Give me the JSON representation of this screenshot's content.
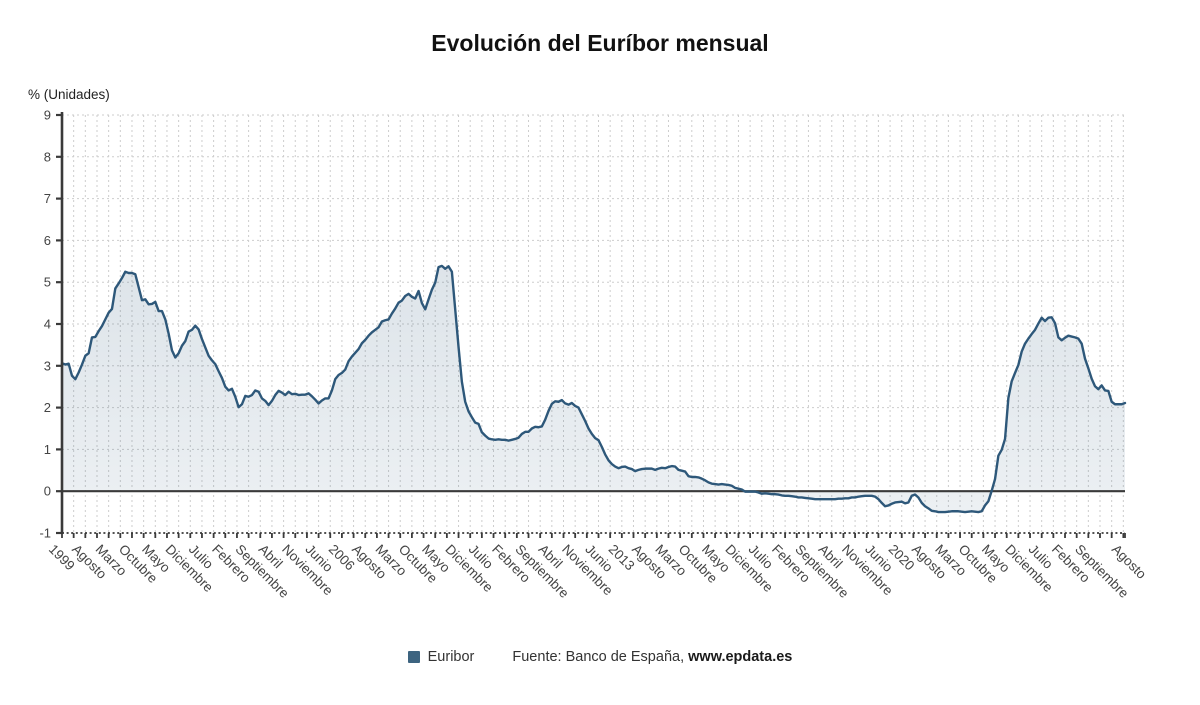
{
  "header": {
    "title": "Evolución del Euríbor mensual"
  },
  "axes": {
    "unit_label": "% (Unidades)"
  },
  "legend": {
    "series_label": "Euribor",
    "source_prefix": "Fuente: Banco de España, ",
    "source_site": "www.epdata.es"
  },
  "colors": {
    "line": "#2e587a",
    "area_top": "rgba(46,88,122,0.16)",
    "area_bottom": "rgba(46,88,122,0.09)",
    "legend_square": "#3d6480",
    "grid": "#cdcdcd",
    "axis": "#3a3a3a",
    "tick_text": "#444444"
  },
  "chart_data": {
    "type": "area",
    "title": "Evolución del Euríbor mensual",
    "ylabel": "% (Unidades)",
    "ylim": [
      -1,
      9
    ],
    "y_ticks": [
      9,
      8,
      7,
      6,
      5,
      4,
      3,
      2,
      1,
      0,
      -1
    ],
    "x_start": "1999-01",
    "x_end": "2025-08",
    "frequency": "monthly",
    "grid": "dashed",
    "legend_position": "bottom",
    "x_tick_indices": [
      0,
      7,
      14,
      21,
      28,
      35,
      42,
      49,
      56,
      63,
      70,
      77,
      84,
      91,
      98,
      105,
      112,
      119,
      126,
      133,
      140,
      147,
      154,
      161,
      168,
      175,
      182,
      189,
      196,
      203,
      210,
      217,
      224,
      231,
      238,
      245,
      252,
      259,
      266,
      273,
      280,
      287,
      294,
      301,
      308,
      319
    ],
    "x_tick_labels": [
      "1999",
      "Agosto",
      "Marzo",
      "Octubre",
      "Mayo",
      "Diciembre",
      "Julio",
      "Febrero",
      "Septiembre",
      "Abril",
      "Noviembre",
      "Junio",
      "2006",
      "Agosto",
      "Marzo",
      "Octubre",
      "Mayo",
      "Diciembre",
      "Julio",
      "Febrero",
      "Septiembre",
      "Abril",
      "Noviembre",
      "Junio",
      "2013",
      "Agosto",
      "Marzo",
      "Octubre",
      "Mayo",
      "Diciembre",
      "Julio",
      "Febrero",
      "Septiembre",
      "Abril",
      "Noviembre",
      "Junio",
      "2020",
      "Agosto",
      "Marzo",
      "Octubre",
      "Mayo",
      "Diciembre",
      "Julio",
      "Febrero",
      "Septiembre",
      "Agosto"
    ],
    "series": [
      {
        "name": "Euribor",
        "values": [
          3.06,
          3.03,
          3.05,
          2.76,
          2.68,
          2.84,
          3.03,
          3.24,
          3.3,
          3.68,
          3.69,
          3.83,
          3.95,
          4.11,
          4.27,
          4.36,
          4.85,
          4.97,
          5.1,
          5.25,
          5.22,
          5.22,
          5.19,
          4.88,
          4.57,
          4.59,
          4.47,
          4.48,
          4.53,
          4.31,
          4.31,
          4.11,
          3.77,
          3.37,
          3.2,
          3.3,
          3.48,
          3.59,
          3.82,
          3.86,
          3.96,
          3.87,
          3.64,
          3.44,
          3.24,
          3.13,
          3.04,
          2.87,
          2.71,
          2.5,
          2.41,
          2.45,
          2.26,
          2.01,
          2.08,
          2.28,
          2.26,
          2.3,
          2.41,
          2.38,
          2.22,
          2.16,
          2.06,
          2.16,
          2.3,
          2.4,
          2.36,
          2.3,
          2.38,
          2.32,
          2.33,
          2.3,
          2.31,
          2.31,
          2.34,
          2.27,
          2.19,
          2.1,
          2.17,
          2.22,
          2.22,
          2.41,
          2.68,
          2.78,
          2.83,
          2.91,
          3.11,
          3.22,
          3.31,
          3.4,
          3.54,
          3.62,
          3.72,
          3.8,
          3.86,
          3.92,
          4.06,
          4.09,
          4.11,
          4.25,
          4.37,
          4.51,
          4.56,
          4.67,
          4.72,
          4.65,
          4.61,
          4.79,
          4.5,
          4.35,
          4.59,
          4.82,
          4.99,
          5.36,
          5.39,
          5.32,
          5.38,
          5.25,
          4.35,
          3.45,
          2.62,
          2.14,
          1.91,
          1.77,
          1.64,
          1.61,
          1.41,
          1.33,
          1.26,
          1.24,
          1.23,
          1.24,
          1.23,
          1.23,
          1.21,
          1.23,
          1.25,
          1.28,
          1.37,
          1.42,
          1.42,
          1.5,
          1.54,
          1.53,
          1.55,
          1.71,
          1.92,
          2.09,
          2.15,
          2.14,
          2.18,
          2.1,
          2.07,
          2.11,
          2.04,
          2.0,
          1.84,
          1.68,
          1.5,
          1.37,
          1.27,
          1.22,
          1.06,
          0.88,
          0.74,
          0.65,
          0.59,
          0.55,
          0.58,
          0.59,
          0.55,
          0.53,
          0.48,
          0.51,
          0.53,
          0.54,
          0.54,
          0.54,
          0.51,
          0.54,
          0.56,
          0.55,
          0.58,
          0.6,
          0.59,
          0.51,
          0.49,
          0.47,
          0.36,
          0.34,
          0.34,
          0.33,
          0.3,
          0.26,
          0.21,
          0.18,
          0.17,
          0.16,
          0.17,
          0.16,
          0.15,
          0.13,
          0.08,
          0.06,
          0.04,
          -0.01,
          -0.01,
          -0.01,
          -0.01,
          -0.03,
          -0.06,
          -0.05,
          -0.06,
          -0.07,
          -0.07,
          -0.08,
          -0.1,
          -0.11,
          -0.11,
          -0.12,
          -0.13,
          -0.15,
          -0.15,
          -0.16,
          -0.17,
          -0.18,
          -0.19,
          -0.19,
          -0.19,
          -0.19,
          -0.19,
          -0.19,
          -0.19,
          -0.18,
          -0.18,
          -0.17,
          -0.17,
          -0.15,
          -0.15,
          -0.13,
          -0.12,
          -0.11,
          -0.11,
          -0.11,
          -0.13,
          -0.19,
          -0.28,
          -0.36,
          -0.34,
          -0.3,
          -0.27,
          -0.26,
          -0.25,
          -0.29,
          -0.27,
          -0.11,
          -0.08,
          -0.15,
          -0.28,
          -0.36,
          -0.41,
          -0.47,
          -0.48,
          -0.5,
          -0.5,
          -0.5,
          -0.49,
          -0.48,
          -0.48,
          -0.48,
          -0.49,
          -0.5,
          -0.49,
          -0.48,
          -0.49,
          -0.5,
          -0.48,
          -0.34,
          -0.24,
          0.01,
          0.29,
          0.85,
          0.99,
          1.25,
          2.23,
          2.63,
          2.83,
          3.02,
          3.34,
          3.53,
          3.65,
          3.76,
          3.86,
          4.01,
          4.15,
          4.07,
          4.15,
          4.16,
          4.02,
          3.68,
          3.61,
          3.67,
          3.72,
          3.7,
          3.68,
          3.65,
          3.53,
          3.17,
          2.94,
          2.69,
          2.51,
          2.44,
          2.53,
          2.41,
          2.4,
          2.14,
          2.08,
          2.08,
          2.08,
          2.11
        ]
      }
    ]
  }
}
